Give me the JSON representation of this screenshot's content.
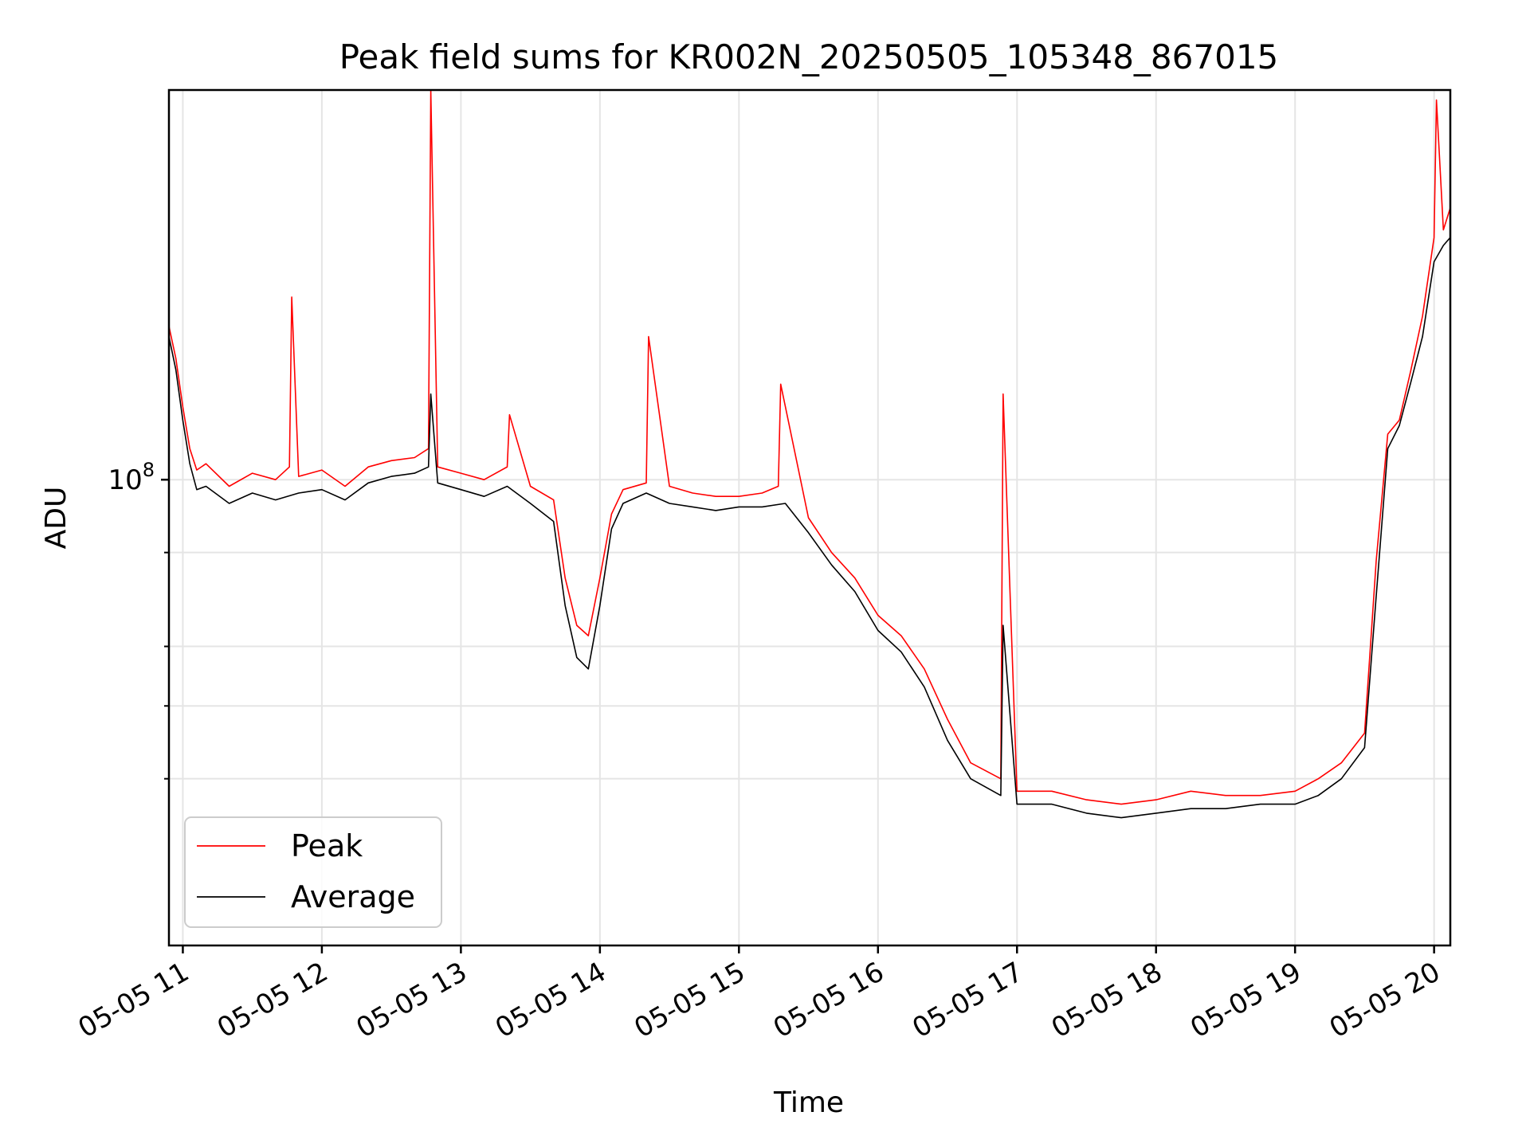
{
  "chart_data": {
    "type": "line",
    "title": "Peak field sums for KR002N_20250505_105348_867015",
    "xlabel": "Time",
    "ylabel": "ADU",
    "y_scale": "log",
    "ylim": [
      24000000,
      330000000
    ],
    "xlim": [
      "2025-05-05 10:54",
      "2025-05-05 20:07"
    ],
    "grid": true,
    "legend_position": "lower-left",
    "x_ticks": [
      {
        "label": "05-05 11",
        "time": "2025-05-05 11:00"
      },
      {
        "label": "05-05 12",
        "time": "2025-05-05 12:00"
      },
      {
        "label": "05-05 13",
        "time": "2025-05-05 13:00"
      },
      {
        "label": "05-05 14",
        "time": "2025-05-05 14:00"
      },
      {
        "label": "05-05 15",
        "time": "2025-05-05 15:00"
      },
      {
        "label": "05-05 16",
        "time": "2025-05-05 16:00"
      },
      {
        "label": "05-05 17",
        "time": "2025-05-05 17:00"
      },
      {
        "label": "05-05 18",
        "time": "2025-05-05 18:00"
      },
      {
        "label": "05-05 19",
        "time": "2025-05-05 19:00"
      },
      {
        "label": "05-05 20",
        "time": "2025-05-05 20:00"
      }
    ],
    "y_ticks": [
      {
        "value": 100000000,
        "label_base": "10",
        "label_exp": "8"
      }
    ],
    "y_minor_ticks": [
      40000000,
      50000000,
      60000000,
      80000000
    ],
    "series": [
      {
        "name": "Peak",
        "color": "#ff0000",
        "x": [
          "2025-05-05 10:54",
          "2025-05-05 10:57",
          "2025-05-05 11:00",
          "2025-05-05 11:03",
          "2025-05-05 11:06",
          "2025-05-05 11:10",
          "2025-05-05 11:20",
          "2025-05-05 11:30",
          "2025-05-05 11:40",
          "2025-05-05 11:46",
          "2025-05-05 11:47",
          "2025-05-05 11:50",
          "2025-05-05 12:00",
          "2025-05-05 12:10",
          "2025-05-05 12:20",
          "2025-05-05 12:30",
          "2025-05-05 12:40",
          "2025-05-05 12:46",
          "2025-05-05 12:47",
          "2025-05-05 12:50",
          "2025-05-05 13:00",
          "2025-05-05 13:10",
          "2025-05-05 13:20",
          "2025-05-05 13:21",
          "2025-05-05 13:30",
          "2025-05-05 13:40",
          "2025-05-05 13:45",
          "2025-05-05 13:50",
          "2025-05-05 13:55",
          "2025-05-05 14:00",
          "2025-05-05 14:05",
          "2025-05-05 14:10",
          "2025-05-05 14:20",
          "2025-05-05 14:21",
          "2025-05-05 14:30",
          "2025-05-05 14:40",
          "2025-05-05 14:50",
          "2025-05-05 15:00",
          "2025-05-05 15:10",
          "2025-05-05 15:17",
          "2025-05-05 15:18",
          "2025-05-05 15:30",
          "2025-05-05 15:40",
          "2025-05-05 15:50",
          "2025-05-05 16:00",
          "2025-05-05 16:10",
          "2025-05-05 16:20",
          "2025-05-05 16:30",
          "2025-05-05 16:40",
          "2025-05-05 16:53",
          "2025-05-05 16:54",
          "2025-05-05 17:00",
          "2025-05-05 17:15",
          "2025-05-05 17:30",
          "2025-05-05 17:45",
          "2025-05-05 18:00",
          "2025-05-05 18:15",
          "2025-05-05 18:30",
          "2025-05-05 18:45",
          "2025-05-05 19:00",
          "2025-05-05 19:10",
          "2025-05-05 19:20",
          "2025-05-05 19:30",
          "2025-05-05 19:35",
          "2025-05-05 19:40",
          "2025-05-05 19:45",
          "2025-05-05 19:50",
          "2025-05-05 19:55",
          "2025-05-05 20:00",
          "2025-05-05 20:01",
          "2025-05-05 20:04",
          "2025-05-05 20:07"
        ],
        "y": [
          160000000,
          145000000,
          125000000,
          110000000,
          103000000,
          105000000,
          98000000,
          102000000,
          100000000,
          104000000,
          175000000,
          101000000,
          103000000,
          98000000,
          104000000,
          106000000,
          107000000,
          110000000,
          330000000,
          104000000,
          102000000,
          100000000,
          104000000,
          122000000,
          98000000,
          94000000,
          74000000,
          64000000,
          62000000,
          74000000,
          90000000,
          97000000,
          99000000,
          155000000,
          98000000,
          96000000,
          95000000,
          95000000,
          96000000,
          98000000,
          134000000,
          89000000,
          80000000,
          74000000,
          66000000,
          62000000,
          56000000,
          48000000,
          42000000,
          40000000,
          130000000,
          38500000,
          38500000,
          37500000,
          37000000,
          37500000,
          38500000,
          38000000,
          38000000,
          38500000,
          40000000,
          42000000,
          46000000,
          78000000,
          115000000,
          120000000,
          140000000,
          165000000,
          210000000,
          320000000,
          215000000,
          230000000
        ]
      },
      {
        "name": "Average",
        "color": "#000000",
        "x": [
          "2025-05-05 10:54",
          "2025-05-05 10:57",
          "2025-05-05 11:00",
          "2025-05-05 11:03",
          "2025-05-05 11:06",
          "2025-05-05 11:10",
          "2025-05-05 11:20",
          "2025-05-05 11:30",
          "2025-05-05 11:40",
          "2025-05-05 11:50",
          "2025-05-05 12:00",
          "2025-05-05 12:10",
          "2025-05-05 12:20",
          "2025-05-05 12:30",
          "2025-05-05 12:40",
          "2025-05-05 12:46",
          "2025-05-05 12:47",
          "2025-05-05 12:50",
          "2025-05-05 13:00",
          "2025-05-05 13:10",
          "2025-05-05 13:20",
          "2025-05-05 13:30",
          "2025-05-05 13:40",
          "2025-05-05 13:45",
          "2025-05-05 13:50",
          "2025-05-05 13:55",
          "2025-05-05 14:00",
          "2025-05-05 14:05",
          "2025-05-05 14:10",
          "2025-05-05 14:20",
          "2025-05-05 14:30",
          "2025-05-05 14:40",
          "2025-05-05 14:50",
          "2025-05-05 15:00",
          "2025-05-05 15:10",
          "2025-05-05 15:20",
          "2025-05-05 15:30",
          "2025-05-05 15:40",
          "2025-05-05 15:50",
          "2025-05-05 16:00",
          "2025-05-05 16:10",
          "2025-05-05 16:20",
          "2025-05-05 16:30",
          "2025-05-05 16:40",
          "2025-05-05 16:53",
          "2025-05-05 16:54",
          "2025-05-05 17:00",
          "2025-05-05 17:15",
          "2025-05-05 17:30",
          "2025-05-05 17:45",
          "2025-05-05 18:00",
          "2025-05-05 18:15",
          "2025-05-05 18:30",
          "2025-05-05 18:45",
          "2025-05-05 19:00",
          "2025-05-05 19:10",
          "2025-05-05 19:20",
          "2025-05-05 19:30",
          "2025-05-05 19:35",
          "2025-05-05 19:40",
          "2025-05-05 19:45",
          "2025-05-05 19:50",
          "2025-05-05 19:55",
          "2025-05-05 20:00",
          "2025-05-05 20:04",
          "2025-05-05 20:07"
        ],
        "y": [
          155000000,
          140000000,
          120000000,
          105000000,
          97000000,
          98000000,
          93000000,
          96000000,
          94000000,
          96000000,
          97000000,
          94000000,
          99000000,
          101000000,
          102000000,
          104000000,
          130000000,
          99000000,
          97000000,
          95000000,
          98000000,
          93000000,
          88000000,
          68000000,
          58000000,
          56000000,
          68000000,
          86000000,
          93000000,
          96000000,
          93000000,
          92000000,
          91000000,
          92000000,
          92000000,
          93000000,
          85000000,
          77000000,
          71000000,
          63000000,
          59000000,
          53000000,
          45000000,
          40000000,
          38000000,
          64000000,
          37000000,
          37000000,
          36000000,
          35500000,
          36000000,
          36500000,
          36500000,
          37000000,
          37000000,
          38000000,
          40000000,
          44000000,
          70000000,
          110000000,
          118000000,
          135000000,
          155000000,
          195000000,
          205000000,
          210000000
        ]
      }
    ]
  }
}
